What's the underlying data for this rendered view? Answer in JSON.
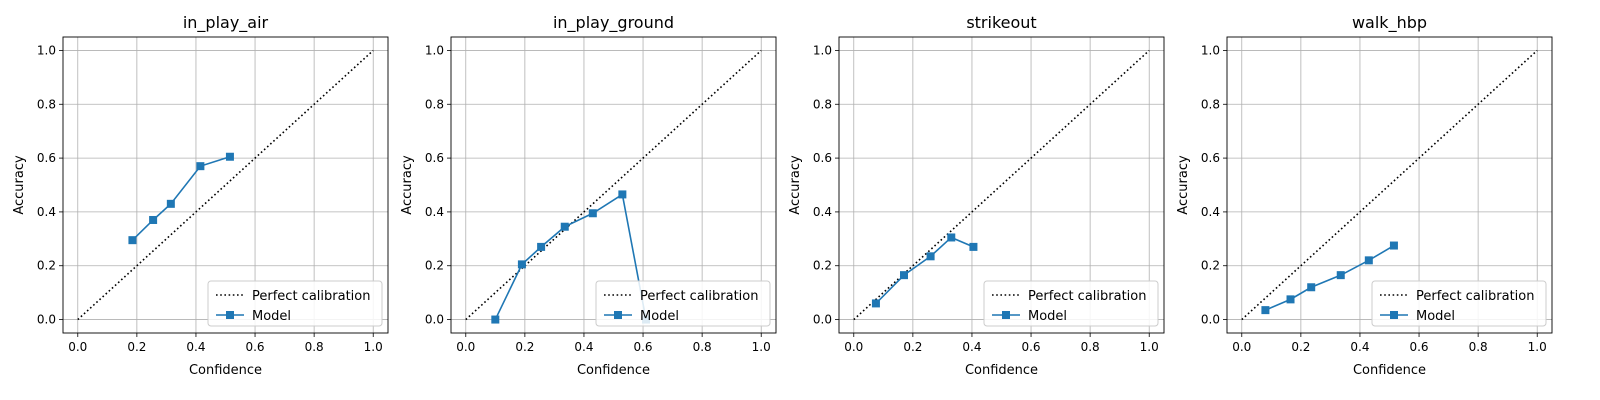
{
  "chart_data": [
    {
      "type": "line",
      "title": "in_play_air",
      "xlabel": "Confidence",
      "ylabel": "Accuracy",
      "xlim": [
        -0.05,
        1.05
      ],
      "ylim": [
        -0.05,
        1.05
      ],
      "xticks": [
        "0.0",
        "0.2",
        "0.4",
        "0.6",
        "0.8",
        "1.0"
      ],
      "yticks": [
        "0.0",
        "0.2",
        "0.4",
        "0.6",
        "0.8",
        "1.0"
      ],
      "grid": true,
      "legend_position": "lower-right",
      "series": [
        {
          "name": "Perfect calibration",
          "style": "dotted",
          "color": "#000000",
          "x": [
            0,
            1
          ],
          "y": [
            0,
            1
          ]
        },
        {
          "name": "Model",
          "style": "line-square",
          "color": "#1f77b4",
          "x": [
            0.185,
            0.255,
            0.315,
            0.415,
            0.515
          ],
          "y": [
            0.295,
            0.37,
            0.43,
            0.57,
            0.605
          ]
        }
      ]
    },
    {
      "type": "line",
      "title": "in_play_ground",
      "xlabel": "Confidence",
      "ylabel": "Accuracy",
      "xlim": [
        -0.05,
        1.05
      ],
      "ylim": [
        -0.05,
        1.05
      ],
      "xticks": [
        "0.0",
        "0.2",
        "0.4",
        "0.6",
        "0.8",
        "1.0"
      ],
      "yticks": [
        "0.0",
        "0.2",
        "0.4",
        "0.6",
        "0.8",
        "1.0"
      ],
      "grid": true,
      "legend_position": "lower-right",
      "series": [
        {
          "name": "Perfect calibration",
          "style": "dotted",
          "color": "#000000",
          "x": [
            0,
            1
          ],
          "y": [
            0,
            1
          ]
        },
        {
          "name": "Model",
          "style": "line-square",
          "color": "#1f77b4",
          "x": [
            0.1,
            0.19,
            0.255,
            0.335,
            0.43,
            0.53,
            0.61
          ],
          "y": [
            0.0,
            0.205,
            0.27,
            0.345,
            0.395,
            0.465,
            0.0
          ]
        }
      ]
    },
    {
      "type": "line",
      "title": "strikeout",
      "xlabel": "Confidence",
      "ylabel": "Accuracy",
      "xlim": [
        -0.05,
        1.05
      ],
      "ylim": [
        -0.05,
        1.05
      ],
      "xticks": [
        "0.0",
        "0.2",
        "0.4",
        "0.6",
        "0.8",
        "1.0"
      ],
      "yticks": [
        "0.0",
        "0.2",
        "0.4",
        "0.6",
        "0.8",
        "1.0"
      ],
      "grid": true,
      "legend_position": "lower-right",
      "series": [
        {
          "name": "Perfect calibration",
          "style": "dotted",
          "color": "#000000",
          "x": [
            0,
            1
          ],
          "y": [
            0,
            1
          ]
        },
        {
          "name": "Model",
          "style": "line-square",
          "color": "#1f77b4",
          "x": [
            0.075,
            0.17,
            0.26,
            0.33,
            0.405
          ],
          "y": [
            0.06,
            0.165,
            0.235,
            0.305,
            0.27
          ]
        }
      ]
    },
    {
      "type": "line",
      "title": "walk_hbp",
      "xlabel": "Confidence",
      "ylabel": "Accuracy",
      "xlim": [
        -0.05,
        1.05
      ],
      "ylim": [
        -0.05,
        1.05
      ],
      "xticks": [
        "0.0",
        "0.2",
        "0.4",
        "0.6",
        "0.8",
        "1.0"
      ],
      "yticks": [
        "0.0",
        "0.2",
        "0.4",
        "0.6",
        "0.8",
        "1.0"
      ],
      "grid": true,
      "legend_position": "lower-right",
      "series": [
        {
          "name": "Perfect calibration",
          "style": "dotted",
          "color": "#000000",
          "x": [
            0,
            1
          ],
          "y": [
            0,
            1
          ]
        },
        {
          "name": "Model",
          "style": "line-square",
          "color": "#1f77b4",
          "x": [
            0.08,
            0.165,
            0.235,
            0.335,
            0.43,
            0.515
          ],
          "y": [
            0.035,
            0.075,
            0.12,
            0.165,
            0.22,
            0.275
          ]
        }
      ]
    }
  ]
}
